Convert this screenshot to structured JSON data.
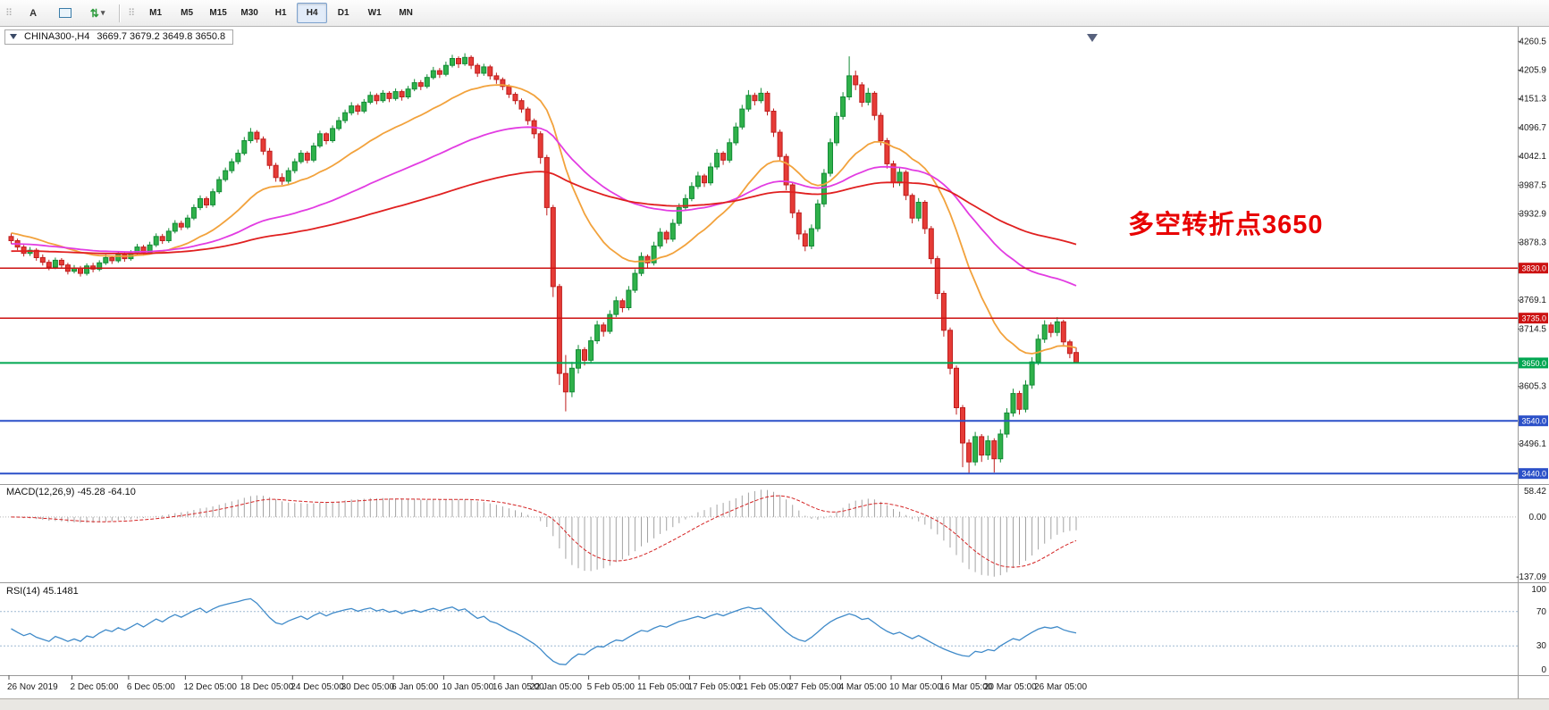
{
  "toolbar": {
    "a_button": "A",
    "timeframes": [
      "M1",
      "M5",
      "M15",
      "M30",
      "H1",
      "H4",
      "D1",
      "W1",
      "MN"
    ],
    "active_timeframe": "H4"
  },
  "chart": {
    "symbol_title": "CHINA300-,H4",
    "ohlc": "3669.7 3679.2 3649.8 3650.8",
    "annotation": "多空转折点3650",
    "macd_label": "MACD(12,26,9) -45.28 -64.10",
    "rsi_label": "RSI(14) 45.1481"
  },
  "chart_data": {
    "type": "candlestick",
    "symbol": "CHINA300-",
    "timeframe": "H4",
    "price_range": {
      "min": 3420,
      "max": 4278
    },
    "price_axis_labels": [
      4260.5,
      4205.9,
      4151.3,
      4096.7,
      4042.1,
      3987.5,
      3932.9,
      3878.3,
      3823.7,
      3769.1,
      3714.5,
      3659.9,
      3605.3,
      3550.7,
      3496.1,
      3441.5
    ],
    "levels": [
      {
        "price": 3830.0,
        "color": "#cc1111",
        "width": 1.5
      },
      {
        "price": 3735.0,
        "color": "#cc1111",
        "width": 1.5
      },
      {
        "price": 3650.0,
        "color": "#00a651",
        "width": 2
      },
      {
        "price": 3540.0,
        "color": "#2b50c8",
        "width": 2
      },
      {
        "price": 3440.0,
        "color": "#2b50c8",
        "width": 2
      }
    ],
    "moving_averages": [
      {
        "name": "fast-ma",
        "period": 22,
        "seed": 3898,
        "color": "#f2a23c"
      },
      {
        "name": "medium-ma",
        "period": 60,
        "seed": 3876,
        "color": "#e23ce2"
      },
      {
        "name": "slow-ma",
        "period": 130,
        "seed": 3862,
        "color": "#e02020"
      }
    ],
    "date_axis": [
      {
        "label": "26 Nov 2019",
        "bar": 0
      },
      {
        "label": "2 Dec 05:00",
        "bar": 10
      },
      {
        "label": "6 Dec 05:00",
        "bar": 19
      },
      {
        "label": "12 Dec 05:00",
        "bar": 28
      },
      {
        "label": "18 Dec 05:00",
        "bar": 37
      },
      {
        "label": "24 Dec 05:00",
        "bar": 45
      },
      {
        "label": "30 Dec 05:00",
        "bar": 53
      },
      {
        "label": "6 Jan 05:00",
        "bar": 61
      },
      {
        "label": "10 Jan 05:00",
        "bar": 69
      },
      {
        "label": "16 Jan 05:00",
        "bar": 77
      },
      {
        "label": "22 Jan 05:00",
        "bar": 83
      },
      {
        "label": "5 Feb 05:00",
        "bar": 92
      },
      {
        "label": "11 Feb 05:00",
        "bar": 100
      },
      {
        "label": "17 Feb 05:00",
        "bar": 108
      },
      {
        "label": "21 Feb 05:00",
        "bar": 116
      },
      {
        "label": "27 Feb 05:00",
        "bar": 124
      },
      {
        "label": "4 Mar 05:00",
        "bar": 132
      },
      {
        "label": "10 Mar 05:00",
        "bar": 140
      },
      {
        "label": "16 Mar 05:00",
        "bar": 148
      },
      {
        "label": "20 Mar 05:00",
        "bar": 155
      },
      {
        "label": "26 Mar 05:00",
        "bar": 163
      }
    ],
    "macd": {
      "params": "12,26,9",
      "value": -45.28,
      "signal_value": -64.1,
      "axis": [
        58.42,
        0,
        -137.09
      ]
    },
    "rsi": {
      "period": 14,
      "value": 45.1481,
      "axis": [
        100,
        70,
        30,
        0
      ],
      "levels": [
        70,
        30
      ]
    },
    "colors": {
      "bull": "#2fb14a",
      "bull_border": "#128a35",
      "bear": "#e63b36",
      "bear_border": "#bf1d1d",
      "macd_hist": "#a3a3a3",
      "macd_signal": "#d42323",
      "rsi_line": "#3f8ac9"
    },
    "ohlc_bars": [
      [
        3890,
        3896,
        3876,
        3882
      ],
      [
        3882,
        3886,
        3864,
        3870
      ],
      [
        3870,
        3874,
        3852,
        3858
      ],
      [
        3858,
        3870,
        3853,
        3864
      ],
      [
        3864,
        3868,
        3844,
        3850
      ],
      [
        3850,
        3856,
        3835,
        3841
      ],
      [
        3841,
        3846,
        3826,
        3832
      ],
      [
        3832,
        3850,
        3828,
        3845
      ],
      [
        3845,
        3849,
        3830,
        3836
      ],
      [
        3836,
        3840,
        3818,
        3824
      ],
      [
        3824,
        3836,
        3820,
        3830
      ],
      [
        3830,
        3834,
        3814,
        3820
      ],
      [
        3820,
        3839,
        3816,
        3834
      ],
      [
        3834,
        3840,
        3822,
        3828
      ],
      [
        3828,
        3845,
        3824,
        3840
      ],
      [
        3840,
        3856,
        3836,
        3850
      ],
      [
        3850,
        3854,
        3838,
        3844
      ],
      [
        3844,
        3861,
        3840,
        3856
      ],
      [
        3856,
        3860,
        3842,
        3848
      ],
      [
        3848,
        3864,
        3844,
        3858
      ],
      [
        3858,
        3876,
        3854,
        3870
      ],
      [
        3870,
        3874,
        3854,
        3860
      ],
      [
        3860,
        3880,
        3856,
        3874
      ],
      [
        3874,
        3896,
        3870,
        3890
      ],
      [
        3890,
        3895,
        3876,
        3882
      ],
      [
        3882,
        3906,
        3878,
        3900
      ],
      [
        3900,
        3921,
        3896,
        3915
      ],
      [
        3915,
        3920,
        3902,
        3908
      ],
      [
        3908,
        3931,
        3904,
        3925
      ],
      [
        3925,
        3951,
        3921,
        3945
      ],
      [
        3945,
        3968,
        3940,
        3962
      ],
      [
        3962,
        3966,
        3944,
        3950
      ],
      [
        3950,
        3981,
        3946,
        3975
      ],
      [
        3975,
        4004,
        3971,
        3998
      ],
      [
        3998,
        4021,
        3994,
        4015
      ],
      [
        4015,
        4038,
        4010,
        4032
      ],
      [
        4032,
        4055,
        4027,
        4048
      ],
      [
        4048,
        4079,
        4044,
        4072
      ],
      [
        4072,
        4096,
        4067,
        4088
      ],
      [
        4088,
        4092,
        4068,
        4075
      ],
      [
        4075,
        4080,
        4045,
        4052
      ],
      [
        4052,
        4058,
        4018,
        4025
      ],
      [
        4025,
        4030,
        3994,
        4002
      ],
      [
        4002,
        4010,
        3988,
        3995
      ],
      [
        3995,
        4021,
        3990,
        4015
      ],
      [
        4015,
        4038,
        4010,
        4032
      ],
      [
        4032,
        4054,
        4028,
        4048
      ],
      [
        4048,
        4052,
        4029,
        4035
      ],
      [
        4035,
        4068,
        4031,
        4062
      ],
      [
        4062,
        4091,
        4058,
        4085
      ],
      [
        4085,
        4088,
        4065,
        4072
      ],
      [
        4072,
        4101,
        4068,
        4095
      ],
      [
        4095,
        4117,
        4091,
        4110
      ],
      [
        4110,
        4131,
        4105,
        4125
      ],
      [
        4125,
        4145,
        4120,
        4138
      ],
      [
        4138,
        4142,
        4121,
        4128
      ],
      [
        4128,
        4151,
        4124,
        4145
      ],
      [
        4145,
        4165,
        4141,
        4158
      ],
      [
        4158,
        4162,
        4141,
        4148
      ],
      [
        4148,
        4168,
        4144,
        4162
      ],
      [
        4162,
        4166,
        4145,
        4152
      ],
      [
        4152,
        4171,
        4148,
        4165
      ],
      [
        4165,
        4169,
        4148,
        4155
      ],
      [
        4155,
        4176,
        4151,
        4170
      ],
      [
        4170,
        4189,
        4166,
        4182
      ],
      [
        4182,
        4187,
        4168,
        4175
      ],
      [
        4175,
        4198,
        4171,
        4192
      ],
      [
        4192,
        4212,
        4188,
        4205
      ],
      [
        4205,
        4210,
        4191,
        4198
      ],
      [
        4198,
        4222,
        4194,
        4215
      ],
      [
        4215,
        4235,
        4211,
        4228
      ],
      [
        4228,
        4232,
        4210,
        4218
      ],
      [
        4218,
        4238,
        4214,
        4230
      ],
      [
        4230,
        4234,
        4208,
        4215
      ],
      [
        4215,
        4219,
        4193,
        4200
      ],
      [
        4200,
        4218,
        4195,
        4212
      ],
      [
        4212,
        4216,
        4188,
        4195
      ],
      [
        4195,
        4201,
        4180,
        4188
      ],
      [
        4188,
        4192,
        4168,
        4175
      ],
      [
        4175,
        4179,
        4153,
        4160
      ],
      [
        4160,
        4164,
        4141,
        4148
      ],
      [
        4148,
        4152,
        4125,
        4132
      ],
      [
        4132,
        4136,
        4102,
        4110
      ],
      [
        4110,
        4114,
        4076,
        4085
      ],
      [
        4085,
        4090,
        4028,
        4040
      ],
      [
        4040,
        4045,
        3930,
        3945
      ],
      [
        3945,
        3950,
        3775,
        3795
      ],
      [
        3795,
        3800,
        3608,
        3630
      ],
      [
        3630,
        3665,
        3558,
        3595
      ],
      [
        3595,
        3652,
        3585,
        3640
      ],
      [
        3640,
        3684,
        3630,
        3675
      ],
      [
        3675,
        3680,
        3645,
        3655
      ],
      [
        3655,
        3700,
        3650,
        3692
      ],
      [
        3692,
        3730,
        3686,
        3722
      ],
      [
        3722,
        3727,
        3700,
        3710
      ],
      [
        3710,
        3750,
        3705,
        3742
      ],
      [
        3742,
        3776,
        3737,
        3768
      ],
      [
        3768,
        3772,
        3746,
        3755
      ],
      [
        3755,
        3796,
        3750,
        3788
      ],
      [
        3788,
        3828,
        3783,
        3820
      ],
      [
        3820,
        3860,
        3815,
        3852
      ],
      [
        3852,
        3856,
        3831,
        3840
      ],
      [
        3840,
        3880,
        3835,
        3872
      ],
      [
        3872,
        3906,
        3867,
        3898
      ],
      [
        3898,
        3902,
        3877,
        3885
      ],
      [
        3885,
        3923,
        3880,
        3915
      ],
      [
        3915,
        3953,
        3910,
        3945
      ],
      [
        3945,
        3970,
        3939,
        3962
      ],
      [
        3962,
        3993,
        3957,
        3985
      ],
      [
        3985,
        4013,
        3980,
        4005
      ],
      [
        4005,
        4009,
        3984,
        3992
      ],
      [
        3992,
        4030,
        3987,
        4022
      ],
      [
        4022,
        4056,
        4017,
        4048
      ],
      [
        4048,
        4052,
        4026,
        4035
      ],
      [
        4035,
        4076,
        4030,
        4068
      ],
      [
        4068,
        4106,
        4063,
        4098
      ],
      [
        4098,
        4140,
        4093,
        4132
      ],
      [
        4132,
        4168,
        4127,
        4158
      ],
      [
        4158,
        4163,
        4139,
        4148
      ],
      [
        4148,
        4172,
        4143,
        4162
      ],
      [
        4162,
        4166,
        4120,
        4128
      ],
      [
        4128,
        4133,
        4079,
        4088
      ],
      [
        4088,
        4093,
        4033,
        4042
      ],
      [
        4042,
        4047,
        3978,
        3988
      ],
      [
        3988,
        3993,
        3925,
        3935
      ],
      [
        3935,
        3941,
        3884,
        3895
      ],
      [
        3895,
        3902,
        3862,
        3872
      ],
      [
        3872,
        3913,
        3866,
        3905
      ],
      [
        3905,
        3960,
        3899,
        3952
      ],
      [
        3952,
        4018,
        3946,
        4010
      ],
      [
        4010,
        4076,
        4004,
        4068
      ],
      [
        4068,
        4126,
        4062,
        4118
      ],
      [
        4118,
        4164,
        4112,
        4155
      ],
      [
        4155,
        4232,
        4149,
        4195
      ],
      [
        4195,
        4205,
        4168,
        4178
      ],
      [
        4178,
        4183,
        4136,
        4145
      ],
      [
        4145,
        4172,
        4139,
        4162
      ],
      [
        4162,
        4166,
        4111,
        4120
      ],
      [
        4120,
        4125,
        4063,
        4072
      ],
      [
        4072,
        4077,
        4019,
        4028
      ],
      [
        4028,
        4034,
        3983,
        3992
      ],
      [
        3992,
        4020,
        3986,
        4012
      ],
      [
        4012,
        4016,
        3959,
        3968
      ],
      [
        3968,
        3972,
        3915,
        3925
      ],
      [
        3925,
        3963,
        3919,
        3955
      ],
      [
        3955,
        3959,
        3895,
        3905
      ],
      [
        3905,
        3910,
        3838,
        3848
      ],
      [
        3848,
        3853,
        3771,
        3782
      ],
      [
        3782,
        3787,
        3700,
        3712
      ],
      [
        3712,
        3717,
        3628,
        3640
      ],
      [
        3640,
        3645,
        3552,
        3565
      ],
      [
        3565,
        3570,
        3452,
        3498
      ],
      [
        3498,
        3505,
        3440,
        3462
      ],
      [
        3462,
        3519,
        3455,
        3510
      ],
      [
        3510,
        3515,
        3462,
        3475
      ],
      [
        3475,
        3512,
        3466,
        3502
      ],
      [
        3502,
        3507,
        3442,
        3468
      ],
      [
        3468,
        3524,
        3461,
        3515
      ],
      [
        3515,
        3564,
        3508,
        3555
      ],
      [
        3555,
        3601,
        3548,
        3592
      ],
      [
        3592,
        3597,
        3552,
        3562
      ],
      [
        3562,
        3617,
        3556,
        3608
      ],
      [
        3608,
        3661,
        3601,
        3652
      ],
      [
        3652,
        3704,
        3646,
        3695
      ],
      [
        3695,
        3731,
        3688,
        3722
      ],
      [
        3722,
        3727,
        3699,
        3708
      ],
      [
        3708,
        3737,
        3701,
        3728
      ],
      [
        3728,
        3732,
        3681,
        3690
      ],
      [
        3690,
        3694,
        3659,
        3668
      ],
      [
        3669.7,
        3679.2,
        3649.8,
        3650.8
      ]
    ]
  }
}
